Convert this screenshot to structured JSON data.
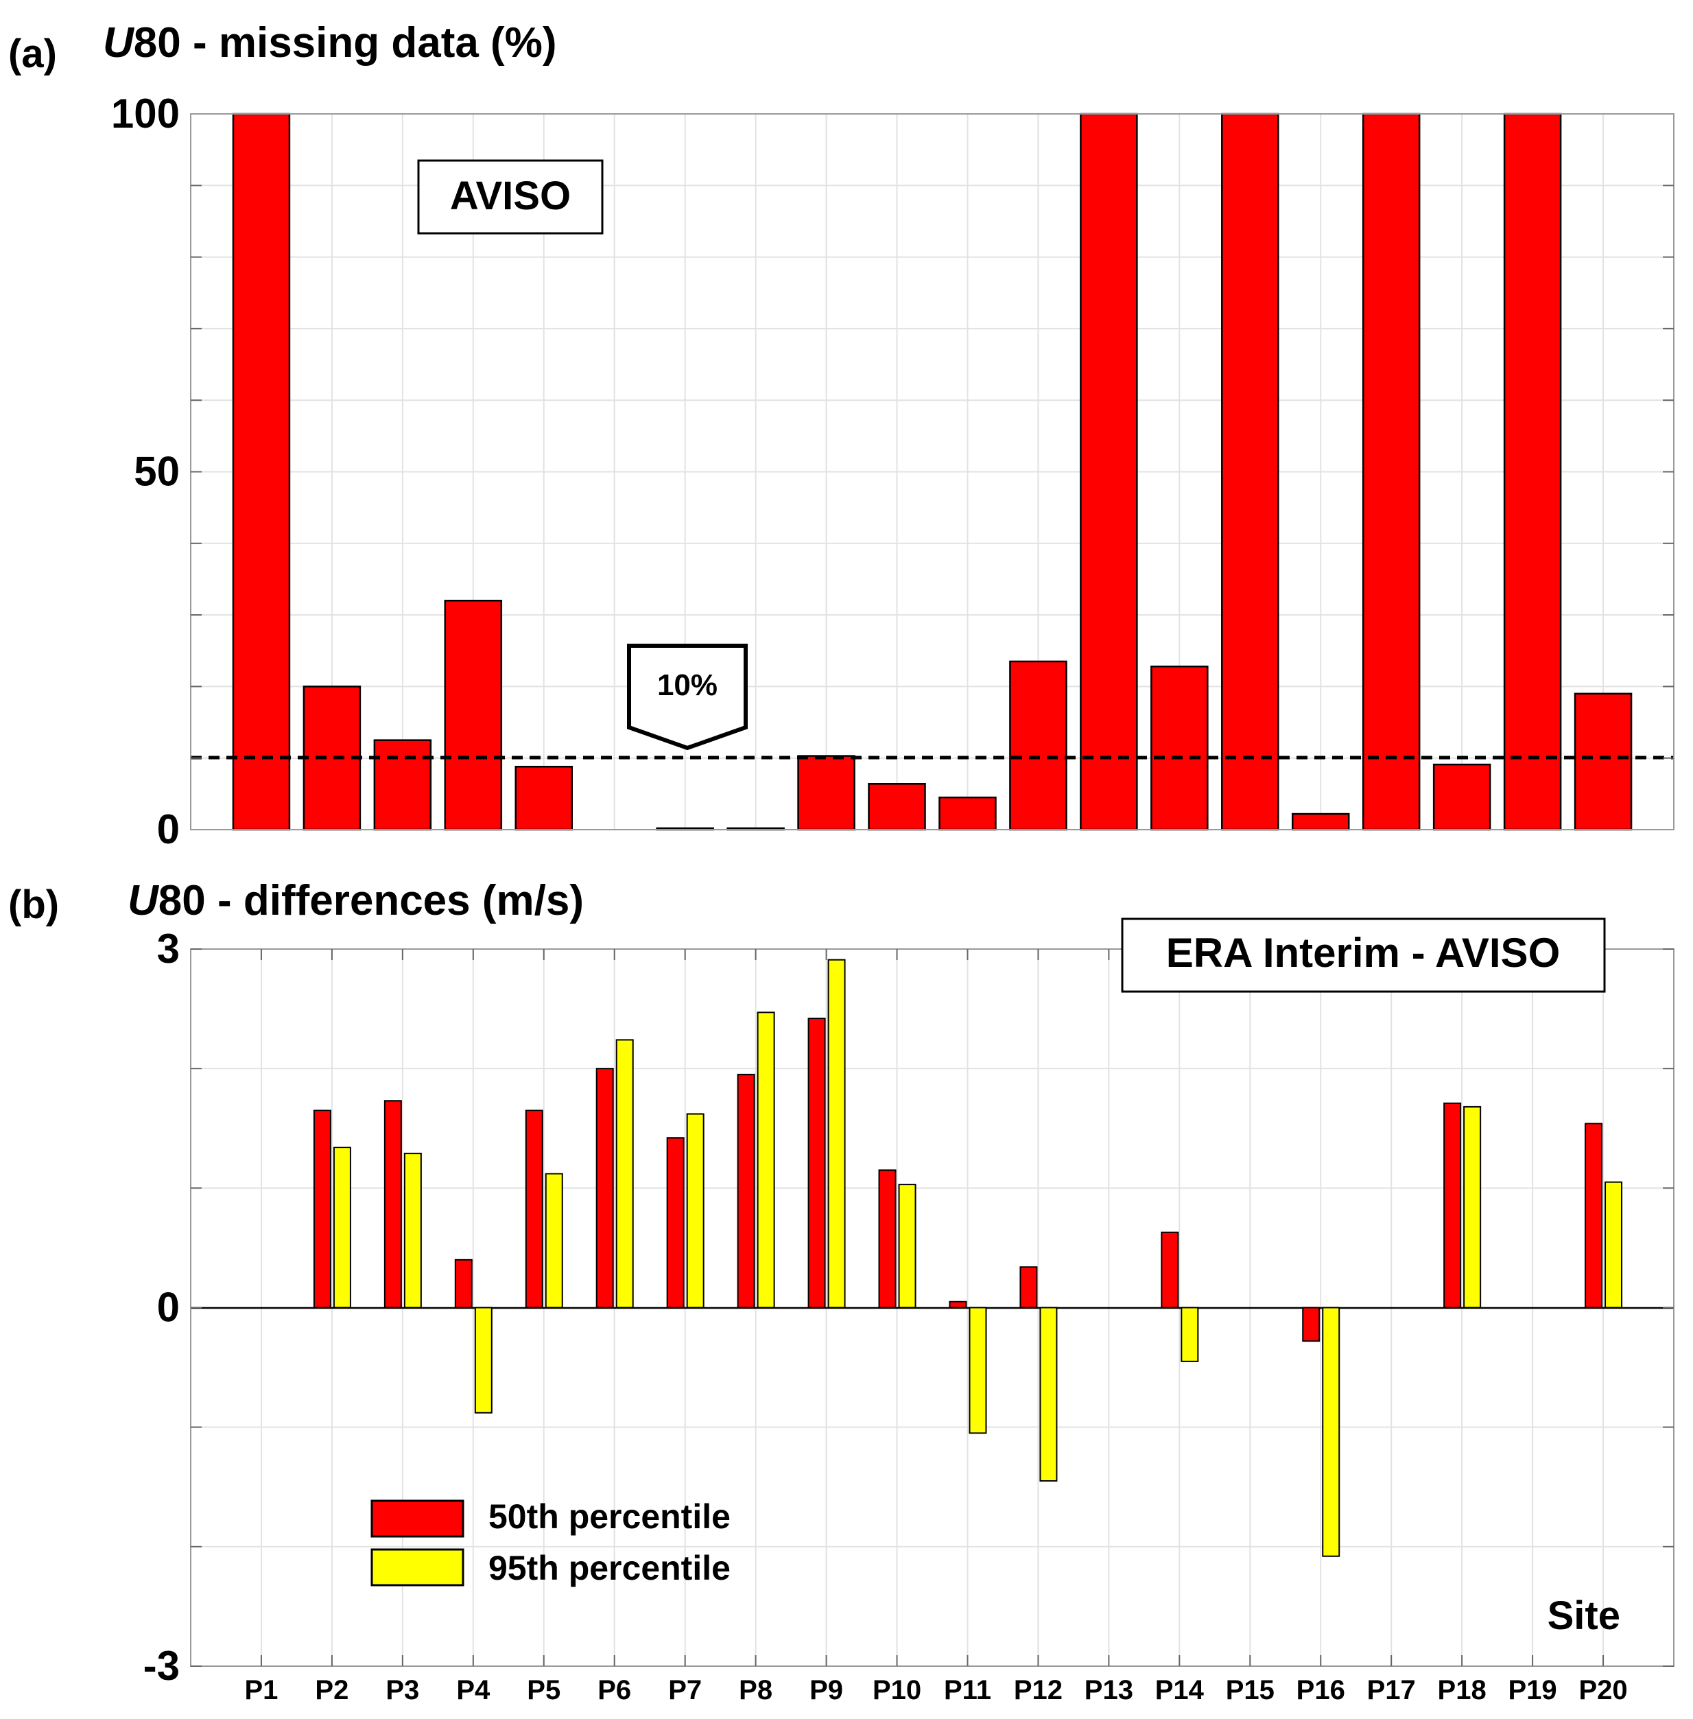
{
  "chart_data": [
    {
      "type": "bar",
      "panel_label": "(a)",
      "title_var": "U",
      "title_rest": "80 - missing data (%)",
      "annotation_box": "AVISO",
      "threshold_label": "10%",
      "threshold_value": 10,
      "ylim": [
        0,
        100
      ],
      "ytick_labels": [
        "0",
        "50",
        "100"
      ],
      "ytick_values": [
        0,
        50,
        100
      ],
      "categories": [
        "P1",
        "P2",
        "P3",
        "P4",
        "P5",
        "P6",
        "P7",
        "P8",
        "P9",
        "P10",
        "P11",
        "P12",
        "P13",
        "P14",
        "P15",
        "P16",
        "P17",
        "P18",
        "P19",
        "P20"
      ],
      "values": [
        100,
        20,
        12.5,
        32,
        8.8,
        0,
        0.2,
        0.2,
        10.3,
        6.4,
        4.5,
        23.5,
        100,
        22.8,
        100,
        2.2,
        100,
        9.1,
        100,
        19
      ],
      "color": "#ff0000",
      "grid": true
    },
    {
      "type": "bar",
      "panel_label": "(b)",
      "title_var": "U",
      "title_rest": "80 - differences (m/s)",
      "annotation_box": "ERA Interim - AVISO",
      "ylim": [
        -3,
        3
      ],
      "ytick_labels": [
        "-3",
        "0",
        "3"
      ],
      "ytick_values": [
        -3,
        0,
        3
      ],
      "xlabel": "Site",
      "categories": [
        "P1",
        "P2",
        "P3",
        "P4",
        "P5",
        "P6",
        "P7",
        "P8",
        "P9",
        "P10",
        "P11",
        "P12",
        "P13",
        "P14",
        "P15",
        "P16",
        "P17",
        "P18",
        "P19",
        "P20"
      ],
      "series": [
        {
          "name": "50th percentile",
          "color": "#ff0000",
          "values": [
            null,
            1.65,
            1.73,
            0.4,
            1.65,
            2.0,
            1.42,
            1.95,
            2.42,
            1.15,
            0.05,
            0.34,
            null,
            0.63,
            null,
            -0.28,
            null,
            1.71,
            null,
            1.54
          ]
        },
        {
          "name": "95th percentile",
          "color": "#ffff00",
          "values": [
            null,
            1.34,
            1.29,
            -0.88,
            1.12,
            2.24,
            1.62,
            2.47,
            2.91,
            1.03,
            -1.05,
            -1.45,
            null,
            -0.45,
            null,
            -2.08,
            null,
            1.68,
            null,
            1.05
          ]
        }
      ],
      "grid": true
    }
  ]
}
